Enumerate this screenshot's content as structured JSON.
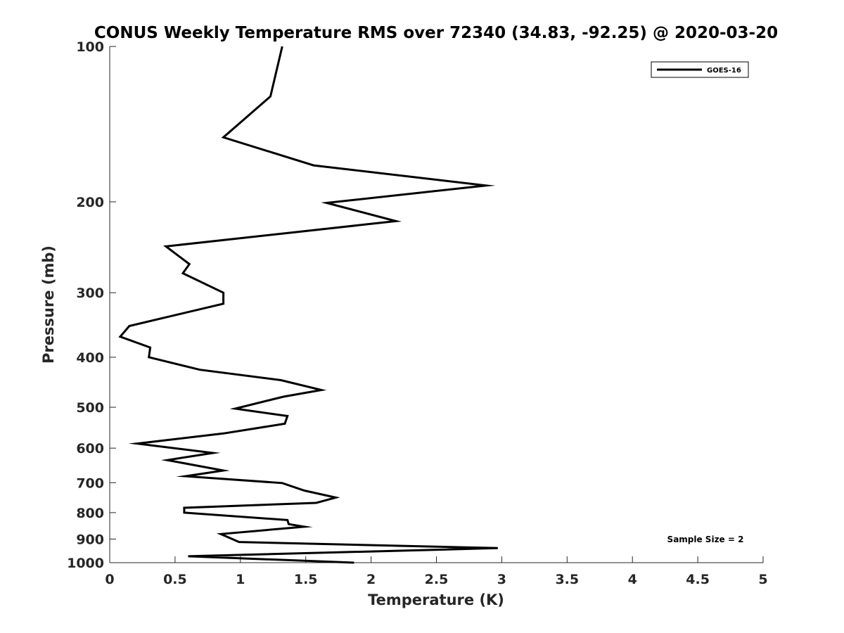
{
  "chart_data": {
    "type": "line",
    "title": "CONUS Weekly Temperature RMS over 72340 (34.83, -92.25) @ 2020-03-20",
    "xlabel": "Temperature (K)",
    "ylabel": "Pressure (mb)",
    "xlim": [
      0,
      5
    ],
    "ylim": [
      1000,
      100
    ],
    "yscale": "log",
    "y_reversed": true,
    "x_ticks": [
      0,
      0.5,
      1,
      1.5,
      2,
      2.5,
      3,
      3.5,
      4,
      4.5,
      5
    ],
    "x_tick_labels": [
      "0",
      "0.5",
      "1",
      "1.5",
      "2",
      "2.5",
      "3",
      "3.5",
      "4",
      "4.5",
      "5"
    ],
    "y_ticks": [
      100,
      200,
      300,
      400,
      500,
      600,
      700,
      800,
      900,
      1000
    ],
    "y_tick_labels": [
      "100",
      "200",
      "300",
      "400",
      "500",
      "600",
      "700",
      "800",
      "900",
      "1000"
    ],
    "grid": false,
    "legend_position": "top-right",
    "annotation": "Sample Size = 2",
    "series": [
      {
        "name": "GOES-16",
        "color": "#000000",
        "points": [
          [
            1.32,
            100
          ],
          [
            1.23,
            125
          ],
          [
            0.87,
            150
          ],
          [
            1.56,
            170
          ],
          [
            2.88,
            186
          ],
          [
            1.66,
            201
          ],
          [
            2.19,
            218
          ],
          [
            0.43,
            244
          ],
          [
            0.61,
            264
          ],
          [
            0.56,
            275
          ],
          [
            0.87,
            300
          ],
          [
            0.87,
            315
          ],
          [
            0.15,
            348
          ],
          [
            0.08,
            365
          ],
          [
            0.31,
            383
          ],
          [
            0.3,
            400
          ],
          [
            0.69,
            423
          ],
          [
            1.31,
            443
          ],
          [
            1.62,
            463
          ],
          [
            1.33,
            477
          ],
          [
            0.96,
            503
          ],
          [
            1.36,
            520
          ],
          [
            1.34,
            538
          ],
          [
            0.87,
            562
          ],
          [
            0.21,
            588
          ],
          [
            0.79,
            613
          ],
          [
            0.44,
            633
          ],
          [
            0.87,
            663
          ],
          [
            0.58,
            680
          ],
          [
            1.32,
            701
          ],
          [
            1.49,
            725
          ],
          [
            1.73,
            748
          ],
          [
            1.58,
            766
          ],
          [
            0.57,
            783
          ],
          [
            0.57,
            800
          ],
          [
            1.36,
            827
          ],
          [
            1.37,
            842
          ],
          [
            1.49,
            852
          ],
          [
            0.85,
            880
          ],
          [
            0.99,
            912
          ],
          [
            2.97,
            937
          ],
          [
            0.6,
            972
          ],
          [
            1.87,
            1000
          ]
        ]
      }
    ]
  }
}
